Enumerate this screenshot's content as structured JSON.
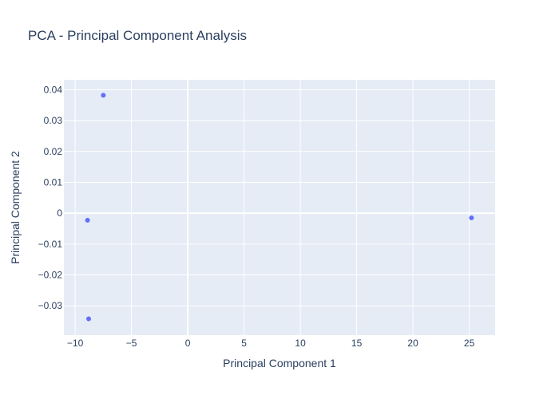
{
  "chart_data": {
    "type": "scatter",
    "title": "PCA - Principal Component Analysis",
    "xlabel": "Principal Component 1",
    "ylabel": "Principal Component 2",
    "xlim": [
      -11,
      27.3
    ],
    "ylim": [
      -0.0395,
      0.0432
    ],
    "x_ticks": [
      -10,
      -5,
      0,
      5,
      10,
      15,
      20,
      25
    ],
    "x_tick_labels": [
      "−10",
      "−5",
      "0",
      "5",
      "10",
      "15",
      "20",
      "25"
    ],
    "y_ticks": [
      -0.03,
      -0.02,
      -0.01,
      0,
      0.01,
      0.02,
      0.03,
      0.04
    ],
    "y_tick_labels": [
      "−0.03",
      "−0.02",
      "−0.01",
      "0",
      "0.01",
      "0.02",
      "0.03",
      "0.04"
    ],
    "grid": true,
    "legend": "none",
    "points": [
      {
        "x": -7.5,
        "y": 0.0382
      },
      {
        "x": -8.9,
        "y": -0.0023
      },
      {
        "x": -8.8,
        "y": -0.0342
      },
      {
        "x": 25.2,
        "y": -0.0015
      }
    ],
    "colors": {
      "plot_background": "#e5ecf6",
      "grid": "#ffffff",
      "marker": "#636efa",
      "text": "#2a3f5f",
      "tick_text": "#2a3f5f"
    }
  }
}
